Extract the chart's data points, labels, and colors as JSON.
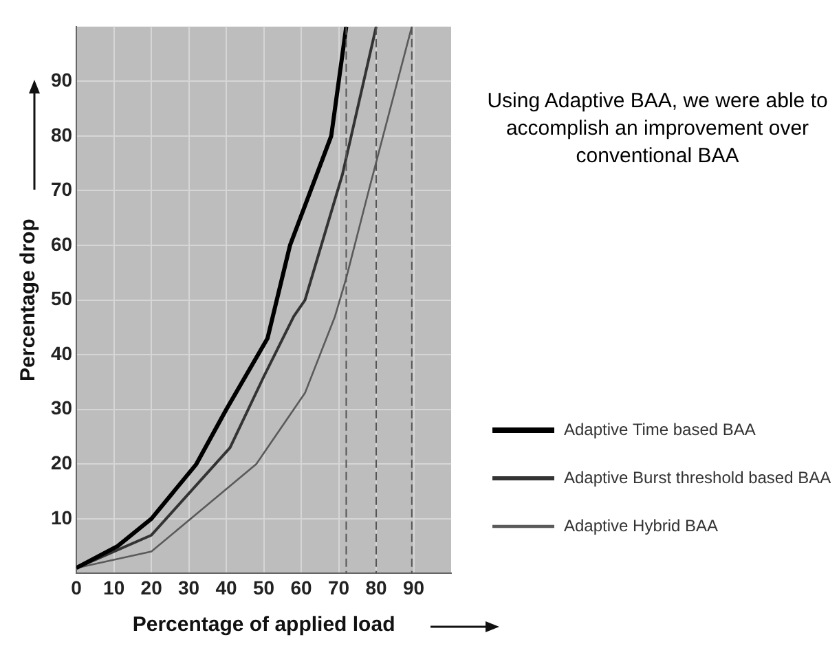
{
  "chart_data": {
    "type": "line",
    "xlabel": "Percentage of applied load",
    "ylabel": "Percentage drop",
    "annotations": [
      "Using Adaptive BAA, we were able to accomplish an improvement over conventional BAA"
    ],
    "series": [
      {
        "name": "Adaptive Time based BAA",
        "color": "#000000",
        "x": [
          0,
          11,
          20,
          32,
          40,
          51,
          57,
          68,
          72
        ],
        "values": [
          1,
          5,
          10,
          20,
          30,
          43,
          60,
          80,
          100
        ]
      },
      {
        "name": "Adaptive Burst threshold based BAA",
        "color": "#333333",
        "x": [
          0,
          20,
          41,
          50,
          58,
          61,
          71,
          80
        ],
        "values": [
          1,
          7,
          23,
          36,
          47,
          50,
          73,
          100
        ]
      },
      {
        "name": "Adaptive Hybrid BAA",
        "color": "#5a5a5a",
        "x": [
          0,
          20,
          48,
          61,
          69,
          72,
          78,
          89.5
        ],
        "values": [
          1,
          4,
          20,
          33,
          47,
          54,
          70,
          100
        ]
      }
    ],
    "xlim": [
      0,
      100
    ],
    "xticks": [
      0,
      10,
      20,
      30,
      40,
      50,
      60,
      70,
      80,
      90
    ],
    "ylim": [
      0,
      100
    ],
    "yticks": [
      10,
      20,
      30,
      40,
      50,
      60,
      70,
      80,
      90
    ],
    "ref_lines": [
      {
        "axis": "x",
        "value": 72,
        "color": "#555555"
      },
      {
        "axis": "x",
        "value": 80,
        "color": "#555555"
      },
      {
        "axis": "x",
        "value": 89.5,
        "color": "#555555"
      }
    ],
    "grid": true,
    "legend": "right",
    "marker": "none",
    "line_style": "solid"
  }
}
